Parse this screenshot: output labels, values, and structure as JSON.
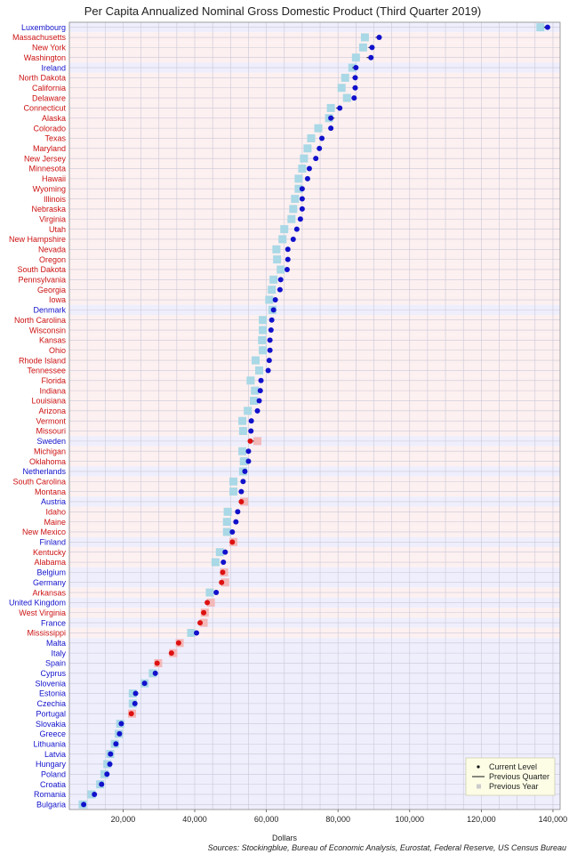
{
  "chart_data": {
    "type": "scatter",
    "title": "Per Capita Annualized Nominal Gross Domestic Product (Third Quarter 2019)",
    "xlabel": "Dollars",
    "source": "Sources: Stockingblue, Bureau of Economic Analysis, Eurostat, Federal Reserve, US Census Bureau",
    "xlim": [
      5000,
      142000
    ],
    "xticks": [
      20000,
      40000,
      60000,
      80000,
      100000,
      120000,
      140000
    ],
    "xtick_labels": [
      "20,000",
      "40,000",
      "60,000",
      "80,000",
      "100,000",
      "120,000",
      "140,000"
    ],
    "grid": true,
    "legend": {
      "placement": "bottom-right",
      "entries": [
        "Current Level",
        "Previous Quarter",
        "Previous Year"
      ]
    },
    "colors": {
      "us_state_label": "#cc1111",
      "country_label": "#1111cc",
      "us_state_band": "#fdf0f0",
      "country_band": "#eeeefc",
      "increase_point": "#1111cc",
      "decrease_point": "#dd1111",
      "previous_year_up": "#a9d8e6",
      "previous_year_down": "#f3b8b8",
      "grid": "#c8c8d8"
    },
    "categories": [
      "Luxembourg",
      "Massachusetts",
      "New York",
      "Washington",
      "Ireland",
      "North Dakota",
      "California",
      "Delaware",
      "Connecticut",
      "Alaska",
      "Colorado",
      "Texas",
      "Maryland",
      "New Jersey",
      "Minnesota",
      "Hawaii",
      "Wyoming",
      "Illinois",
      "Nebraska",
      "Virginia",
      "Utah",
      "New Hampshire",
      "Nevada",
      "Oregon",
      "South Dakota",
      "Pennsylvania",
      "Georgia",
      "Iowa",
      "Denmark",
      "North Carolina",
      "Wisconsin",
      "Kansas",
      "Ohio",
      "Rhode Island",
      "Tennessee",
      "Florida",
      "Indiana",
      "Louisiana",
      "Arizona",
      "Vermont",
      "Missouri",
      "Sweden",
      "Michigan",
      "Oklahoma",
      "Netherlands",
      "South Carolina",
      "Montana",
      "Austria",
      "Idaho",
      "Maine",
      "New Mexico",
      "Finland",
      "Kentucky",
      "Alabama",
      "Belgium",
      "Germany",
      "Arkansas",
      "United Kingdom",
      "West Virginia",
      "France",
      "Mississippi",
      "Malta",
      "Italy",
      "Spain",
      "Cyprus",
      "Slovenia",
      "Estonia",
      "Czechia",
      "Portugal",
      "Slovakia",
      "Greece",
      "Lithuania",
      "Latvia",
      "Hungary",
      "Poland",
      "Croatia",
      "Romania",
      "Bulgaria"
    ],
    "region_type": [
      "country",
      "state",
      "state",
      "state",
      "country",
      "state",
      "state",
      "state",
      "state",
      "state",
      "state",
      "state",
      "state",
      "state",
      "state",
      "state",
      "state",
      "state",
      "state",
      "state",
      "state",
      "state",
      "state",
      "state",
      "state",
      "state",
      "state",
      "state",
      "country",
      "state",
      "state",
      "state",
      "state",
      "state",
      "state",
      "state",
      "state",
      "state",
      "state",
      "state",
      "state",
      "country",
      "state",
      "state",
      "country",
      "state",
      "state",
      "country",
      "state",
      "state",
      "state",
      "country",
      "state",
      "state",
      "country",
      "country",
      "state",
      "country",
      "state",
      "country",
      "state",
      "country",
      "country",
      "country",
      "country",
      "country",
      "country",
      "country",
      "country",
      "country",
      "country",
      "country",
      "country",
      "country",
      "country",
      "country",
      "country",
      "country"
    ],
    "series": [
      {
        "name": "Current Level",
        "values": [
          138500,
          91500,
          89500,
          89200,
          85000,
          84800,
          84800,
          84500,
          80500,
          78000,
          78000,
          75500,
          74800,
          73800,
          72000,
          71500,
          70000,
          70000,
          70000,
          69500,
          68500,
          67500,
          66000,
          66000,
          65800,
          64000,
          63800,
          62500,
          62000,
          61500,
          61300,
          61000,
          61000,
          60800,
          60500,
          58500,
          58300,
          58000,
          57500,
          55800,
          55700,
          55500,
          55000,
          55000,
          54000,
          53500,
          53000,
          53000,
          52000,
          51500,
          50500,
          50500,
          48500,
          48000,
          47800,
          47500,
          46000,
          43500,
          42500,
          41500,
          40500,
          35500,
          33500,
          29500,
          29000,
          26000,
          23500,
          23300,
          22300,
          19500,
          19000,
          18000,
          16500,
          16300,
          15500,
          14000,
          12000,
          9000
        ]
      },
      {
        "name": "Previous Quarter",
        "values": [
          137500,
          90500,
          88500,
          88000,
          84000,
          84000,
          84000,
          84000,
          79500,
          79000,
          77500,
          75000,
          74500,
          73500,
          71500,
          71000,
          70500,
          69500,
          69500,
          69000,
          68000,
          67000,
          65800,
          65500,
          65500,
          63500,
          63500,
          62000,
          61500,
          61000,
          61000,
          60700,
          60700,
          60500,
          60000,
          58000,
          58000,
          57600,
          57200,
          55400,
          55300,
          56500,
          54600,
          54600,
          53800,
          53200,
          52700,
          53500,
          51600,
          51200,
          50300,
          50200,
          48200,
          47700,
          47500,
          47700,
          45800,
          44000,
          42200,
          42000,
          40200,
          35300,
          34000,
          30000,
          29300,
          25800,
          23300,
          23100,
          22100,
          19800,
          19300,
          17800,
          16700,
          16500,
          15300,
          13800,
          11800,
          9200
        ]
      },
      {
        "name": "Previous Year",
        "values": [
          136500,
          87500,
          87000,
          85000,
          84000,
          82000,
          81000,
          82500,
          78000,
          77500,
          74500,
          72500,
          71500,
          70500,
          70000,
          69000,
          69000,
          68000,
          67500,
          67000,
          65000,
          64500,
          62800,
          63000,
          64000,
          62000,
          61500,
          60800,
          61700,
          59000,
          59000,
          58800,
          59000,
          57000,
          58000,
          55600,
          56800,
          56500,
          54800,
          53300,
          53500,
          57500,
          53300,
          53700,
          53500,
          50800,
          50800,
          53800,
          49200,
          49000,
          49000,
          50800,
          47000,
          45800,
          48200,
          48500,
          44200,
          44500,
          42800,
          42500,
          39000,
          35800,
          34000,
          29800,
          28300,
          26000,
          22700,
          22700,
          22500,
          19200,
          18800,
          17700,
          16400,
          15600,
          14800,
          13600,
          11200,
          8700
        ]
      }
    ]
  }
}
